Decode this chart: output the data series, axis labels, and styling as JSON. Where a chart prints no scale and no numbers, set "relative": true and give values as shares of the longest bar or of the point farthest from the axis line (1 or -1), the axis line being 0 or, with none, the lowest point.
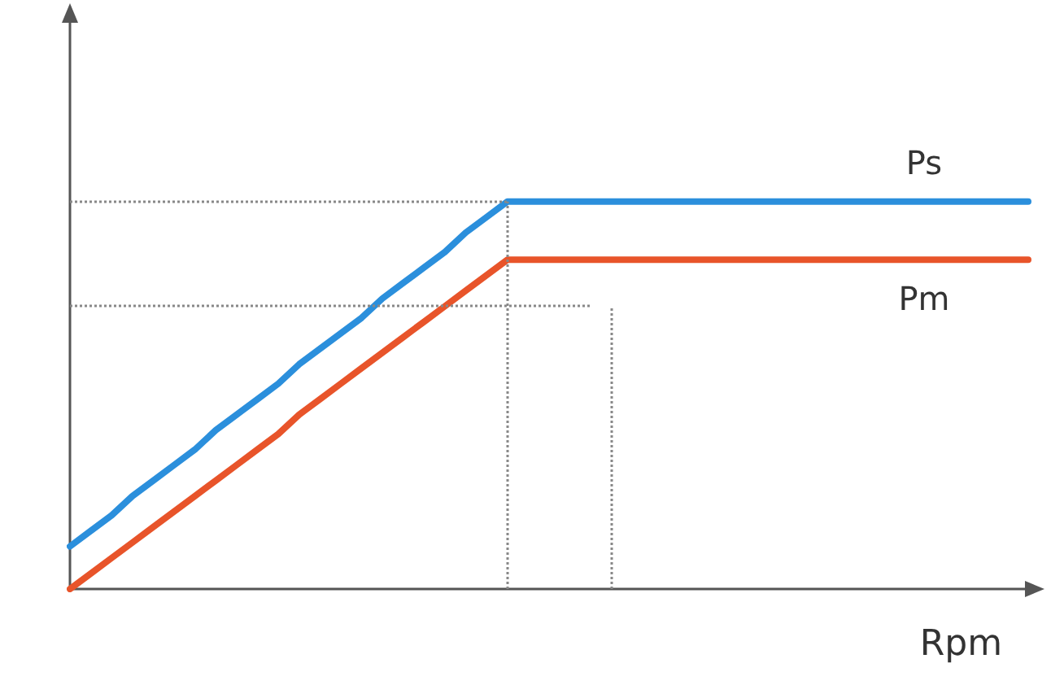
{
  "chart_data": {
    "type": "line",
    "relative": true,
    "xlabel": "Rpm",
    "categories": [
      null,
      null,
      null,
      null,
      null,
      null,
      null,
      null,
      null,
      null,
      null,
      null,
      null,
      null,
      null,
      null,
      null,
      null,
      null,
      null,
      null,
      null,
      null,
      null,
      null,
      null,
      null,
      null,
      null,
      null,
      null,
      null,
      null,
      null,
      null,
      null,
      null,
      null,
      null,
      null,
      null,
      null,
      null,
      null,
      null,
      null,
      null
    ],
    "series": [
      {
        "name": "Ps",
        "color": "#2b8fdc",
        "values": [
          0.11,
          0.15,
          0.19,
          0.24,
          0.28,
          0.32,
          0.36,
          0.41,
          0.45,
          0.49,
          0.53,
          0.58,
          0.62,
          0.66,
          0.7,
          0.75,
          0.79,
          0.83,
          0.87,
          0.92,
          0.96,
          1,
          1,
          1,
          1,
          1,
          1,
          1,
          1,
          1,
          1,
          1,
          1,
          1,
          1,
          1,
          1,
          1,
          1,
          1,
          1,
          1,
          1,
          1,
          1,
          1,
          1
        ]
      },
      {
        "name": "Pm",
        "color": "#e8542a",
        "values": [
          0,
          0.04,
          0.08,
          0.12,
          0.16,
          0.2,
          0.24,
          0.28,
          0.32,
          0.36,
          0.4,
          0.45,
          0.49,
          0.53,
          0.57,
          0.61,
          0.65,
          0.69,
          0.73,
          0.77,
          0.81,
          0.85,
          0.85,
          0.85,
          0.85,
          0.85,
          0.85,
          0.85,
          0.85,
          0.85,
          0.85,
          0.85,
          0.85,
          0.85,
          0.85,
          0.85,
          0.85,
          0.85,
          0.85,
          0.85,
          0.85,
          0.85,
          0.85,
          0.85,
          0.85,
          0.85,
          0.85
        ]
      }
    ],
    "ref_lines": [
      {
        "axis": "y",
        "value": 1,
        "color": "#888888",
        "line_style": "dotted"
      },
      {
        "axis": "y",
        "value": 0.73,
        "color": "#888888",
        "line_style": "dotted"
      }
    ],
    "grid": false,
    "legend": false,
    "marker": "none",
    "line_style": "solid"
  }
}
